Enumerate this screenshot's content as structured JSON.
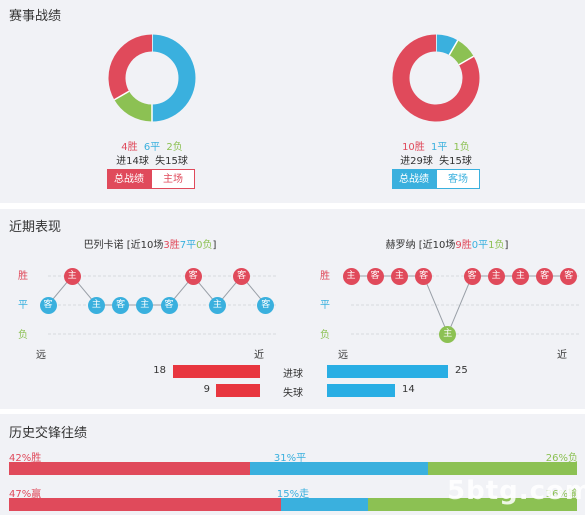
{
  "colors": {
    "win": "#e04a5b",
    "draw": "#3ab0de",
    "loss": "#8cc153",
    "panel": "#f1f2f6"
  },
  "stats": {
    "title": "赛事战绩",
    "left": {
      "win": "4胜",
      "draw": "6平",
      "loss": "2负",
      "goals": "进14球",
      "conceded": "失15球",
      "tab_total": "总战绩",
      "tab_venue": "主场",
      "donut": {
        "win": 4,
        "draw": 6,
        "loss": 2
      }
    },
    "right": {
      "win": "10胜",
      "draw": "1平",
      "loss": "1负",
      "goals": "进29球",
      "conceded": "失15球",
      "tab_total": "总战绩",
      "tab_venue": "客场",
      "donut": {
        "win": 10,
        "draw": 1,
        "loss": 1
      }
    }
  },
  "recent": {
    "title": "近期表现",
    "row_labels": {
      "win": "胜",
      "draw": "平",
      "loss": "负"
    },
    "far": "远",
    "near": "近",
    "left": {
      "team": "巴列卡诺",
      "prefix": "[近10场",
      "w": "3胜",
      "d": "7平",
      "l": "0负",
      "suffix": "]",
      "results": [
        {
          "r": "draw",
          "v": "客"
        },
        {
          "r": "win",
          "v": "主"
        },
        {
          "r": "draw",
          "v": "主"
        },
        {
          "r": "draw",
          "v": "客"
        },
        {
          "r": "draw",
          "v": "主"
        },
        {
          "r": "draw",
          "v": "客"
        },
        {
          "r": "win",
          "v": "客"
        },
        {
          "r": "draw",
          "v": "主"
        },
        {
          "r": "win",
          "v": "客"
        },
        {
          "r": "draw",
          "v": "客"
        }
      ]
    },
    "right": {
      "team": "赫罗纳",
      "prefix": "[近10场",
      "w": "9胜",
      "d": "0平",
      "l": "1负",
      "suffix": "]",
      "results": [
        {
          "r": "win",
          "v": "主"
        },
        {
          "r": "win",
          "v": "客"
        },
        {
          "r": "win",
          "v": "主"
        },
        {
          "r": "win",
          "v": "客"
        },
        {
          "r": "loss",
          "v": "主"
        },
        {
          "r": "win",
          "v": "客"
        },
        {
          "r": "win",
          "v": "主"
        },
        {
          "r": "win",
          "v": "主"
        },
        {
          "r": "win",
          "v": "客"
        },
        {
          "r": "win",
          "v": "客"
        }
      ]
    },
    "goals_label": "进球",
    "conceded_label": "失球",
    "left_goals": 18,
    "left_conceded": 9,
    "right_goals": 25,
    "right_conceded": 14
  },
  "history": {
    "title": "历史交锋往绩",
    "row1": {
      "a": "42%胜",
      "b": "31%平",
      "c": "26%负",
      "pa": 42,
      "pb": 31,
      "pc": 26
    },
    "row2": {
      "a": "47%赢",
      "b": "15%走",
      "c": "36%输",
      "pa": 47,
      "pb": 15,
      "pc": 36
    }
  },
  "watermark": "5btg.com"
}
